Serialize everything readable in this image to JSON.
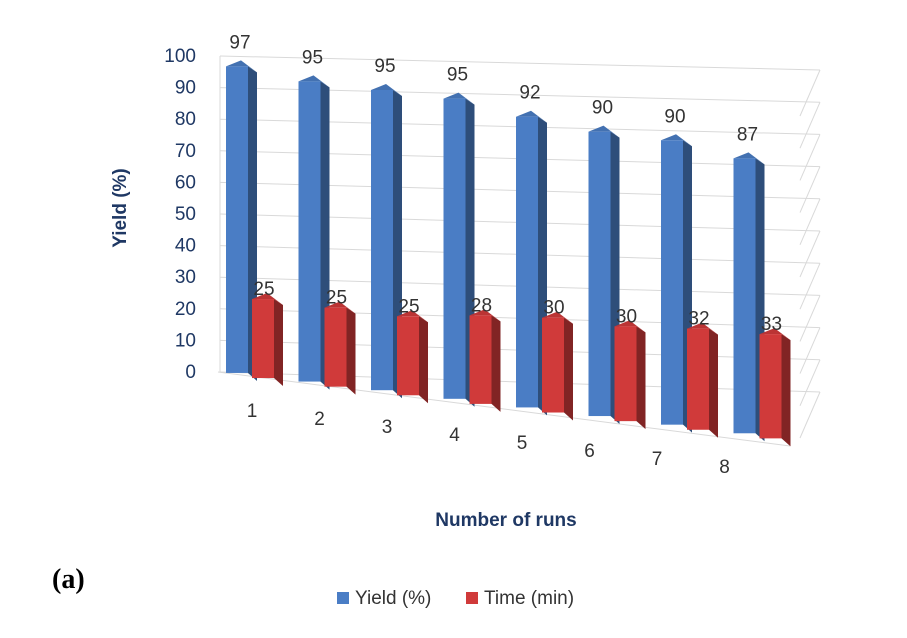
{
  "panel_label": "(a)",
  "chart_data": {
    "type": "bar",
    "xlabel": "Number of runs",
    "ylabel": "Yield (%)",
    "ylim": [
      0,
      100
    ],
    "yticks": [
      "0",
      "10",
      "20",
      "30",
      "40",
      "50",
      "60",
      "70",
      "80",
      "90",
      "100"
    ],
    "categories": [
      "1",
      "2",
      "3",
      "4",
      "5",
      "6",
      "7",
      "8"
    ],
    "series": [
      {
        "name": "Yield (%)",
        "values": [
          97,
          95,
          95,
          95,
          92,
          90,
          90,
          87
        ]
      },
      {
        "name": "Time (min)",
        "values": [
          25,
          25,
          25,
          28,
          30,
          30,
          32,
          33
        ]
      }
    ],
    "grid": true,
    "legend_position": "bottom",
    "colors": {
      "yield": "#4a7dc5",
      "time": "#d03a3a"
    }
  }
}
